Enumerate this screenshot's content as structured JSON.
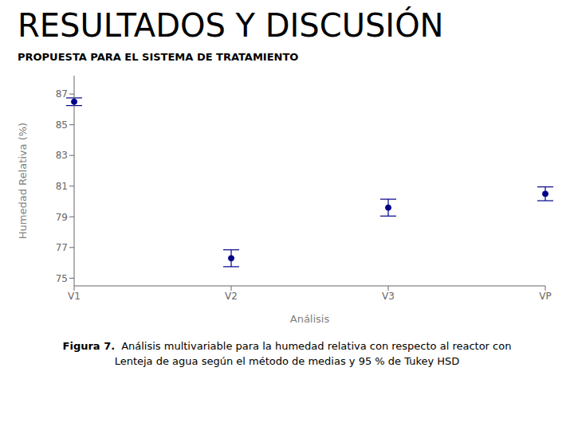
{
  "chart_data": {
    "type": "scatter",
    "title": "RESULTADOS Y DISCUSIÓN",
    "subtitle": "PROPUESTA PARA EL SISTEMA DE TRATAMIENTO",
    "xlabel": "Análisis",
    "ylabel": "Humedad Relativa (%)",
    "categories": [
      "V1",
      "V2",
      "V3",
      "VP"
    ],
    "values": [
      86.5,
      76.3,
      79.6,
      80.5
    ],
    "errors": [
      0.25,
      0.55,
      0.55,
      0.45
    ],
    "ylim": [
      74.5,
      88.2
    ],
    "yticks": [
      75,
      77,
      79,
      81,
      83,
      85,
      87
    ],
    "color": "#00008B",
    "marker": "circle",
    "grid": false,
    "caption_label": "Figura 7.",
    "caption": [
      "Análisis multivariable para la humedad relativa con respecto al reactor con",
      "Lenteja de agua según el método de medias y 95 % de Tukey HSD"
    ]
  }
}
